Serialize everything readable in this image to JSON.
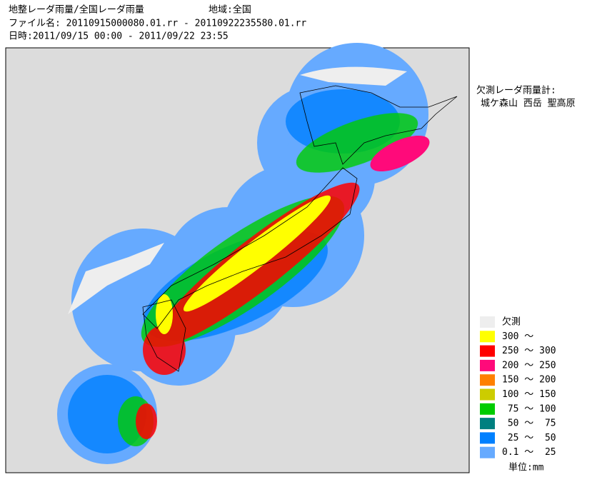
{
  "header": {
    "title": "地整レーダ雨量/全国レーダ雨量",
    "region": "地域:全国",
    "file": "ファイル名: 20110915000080.01.rr - 20110922235580.01.rr",
    "period": "日時:2011/09/15 00:00 - 2011/09/22 23:55"
  },
  "missing": {
    "label": "欠測レーダ雨量計:",
    "stations": "城ケ森山 西岳 聖高原"
  },
  "legend": {
    "items": [
      {
        "label": "欠測",
        "color": "#eeeeee"
      },
      {
        "label": "300 ～",
        "color": "#ffff00"
      },
      {
        "label": "250 ～ 300",
        "color": "#ff0000"
      },
      {
        "label": "200 ～ 250",
        "color": "#ff0a7a"
      },
      {
        "label": "150 ～ 200",
        "color": "#ff8000"
      },
      {
        "label": "100 ～ 150",
        "color": "#cccc00"
      },
      {
        "label": " 75 ～ 100",
        "color": "#00cc00"
      },
      {
        "label": " 50 ～  75",
        "color": "#008080"
      },
      {
        "label": " 25 ～  50",
        "color": "#0080ff"
      },
      {
        "label": "0.1 ～  25",
        "color": "#66aaff"
      }
    ],
    "unit": "単位:mm"
  }
}
